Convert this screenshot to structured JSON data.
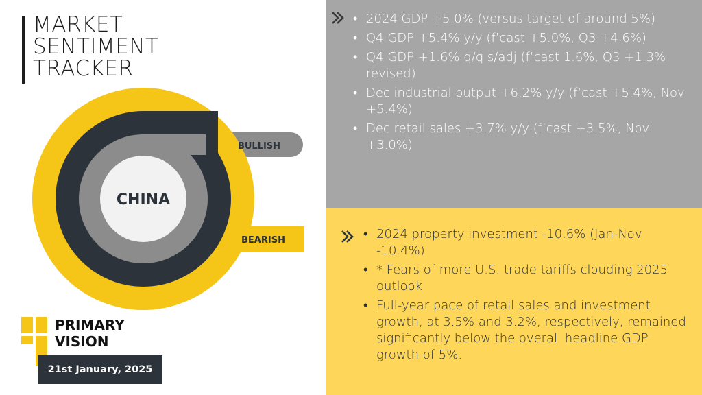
{
  "header": {
    "title_lines": [
      "MARKET",
      "SENTIMENT",
      "TRACKER"
    ]
  },
  "gauge": {
    "center_label": "CHINA",
    "bullish_label": "BULLISH",
    "bearish_label": "BEARISH",
    "colors": {
      "outer": "#f5c518",
      "dark_ring": "#2d333b",
      "grey_ring": "#8c8c8c",
      "bullish_bar": "#8c8c8c",
      "bearish_bar": "#f5c518",
      "center": "#f2f2f2"
    }
  },
  "brand": {
    "name_lines": [
      "PRIMARY",
      "VISION"
    ],
    "date": "21st January, 2025",
    "accent": "#f5c518"
  },
  "bullish_points": [
    "2024 GDP +5.0% (versus target of around 5%)",
    "Q4 GDP +5.4% y/y (f’cast +5.0%, Q3 +4.6%)",
    "Q4 GDP +1.6% q/q s/adj (f’cast 1.6%, Q3 +1.3% revised)",
    "Dec industrial output +6.2% y/y (f’cast +5.4%, Nov +5.4%)",
    "Dec retail sales +3.7% y/y (f’cast +3.5%, Nov +3.0%)"
  ],
  "bearish_points": [
    "2024 property investment -10.6% (Jan-Nov -10.4%)",
    "* Fears of more U.S. trade tariffs clouding 2025 outlook",
    "Full-year pace of retail sales and investment growth, at 3.5% and 3.2%, respectively, remained significantly below the overall headline GDP growth of 5%."
  ]
}
